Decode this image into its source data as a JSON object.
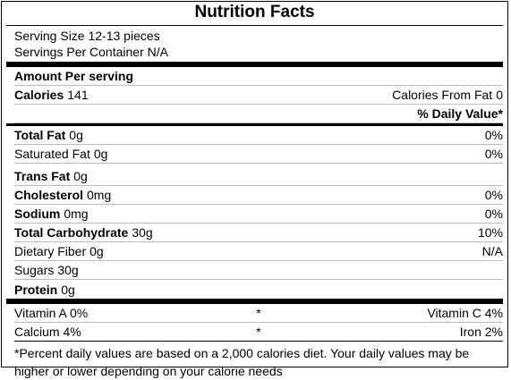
{
  "title": "Nutrition Facts",
  "serving_size": "Serving Size 12-13 pieces",
  "servings_per_container": "Servings Per Container N/A",
  "amount_per_serving": "Amount Per serving",
  "calories": {
    "label": "Calories",
    "value": "141"
  },
  "calories_from_fat": {
    "label": "Calories From Fat",
    "value": "0"
  },
  "daily_value_header": "% Daily Value*",
  "nutrients": [
    {
      "label": "Total Fat",
      "amount": "0g",
      "dv": "0%"
    },
    {
      "label": "Saturated Fat",
      "amount": "0g",
      "dv": "0%"
    },
    {
      "label": "Trans Fat",
      "amount": "0g",
      "dv": ""
    },
    {
      "label": "Cholesterol",
      "amount": "0mg",
      "dv": "0%"
    },
    {
      "label": "Sodium",
      "amount": "0mg",
      "dv": "0%"
    },
    {
      "label": "Total Carbohydrate",
      "amount": "30g",
      "dv": "10%"
    },
    {
      "label": "Dietary Fiber",
      "amount": "0g",
      "dv": "N/A"
    },
    {
      "label": "Sugars",
      "amount": "30g",
      "dv": ""
    },
    {
      "label": "Protein",
      "amount": "0g",
      "dv": ""
    }
  ],
  "vitamins": [
    {
      "left": "Vitamin A 0%",
      "sep": "*",
      "right": "Vitamin C 4%"
    },
    {
      "left": "Calcium 4%",
      "sep": "*",
      "right": "Iron 2%"
    }
  ],
  "footnote": "*Percent daily values are based on a 2,000 calories diet. Your daily values may be higher or lower depending on your calorie needs"
}
